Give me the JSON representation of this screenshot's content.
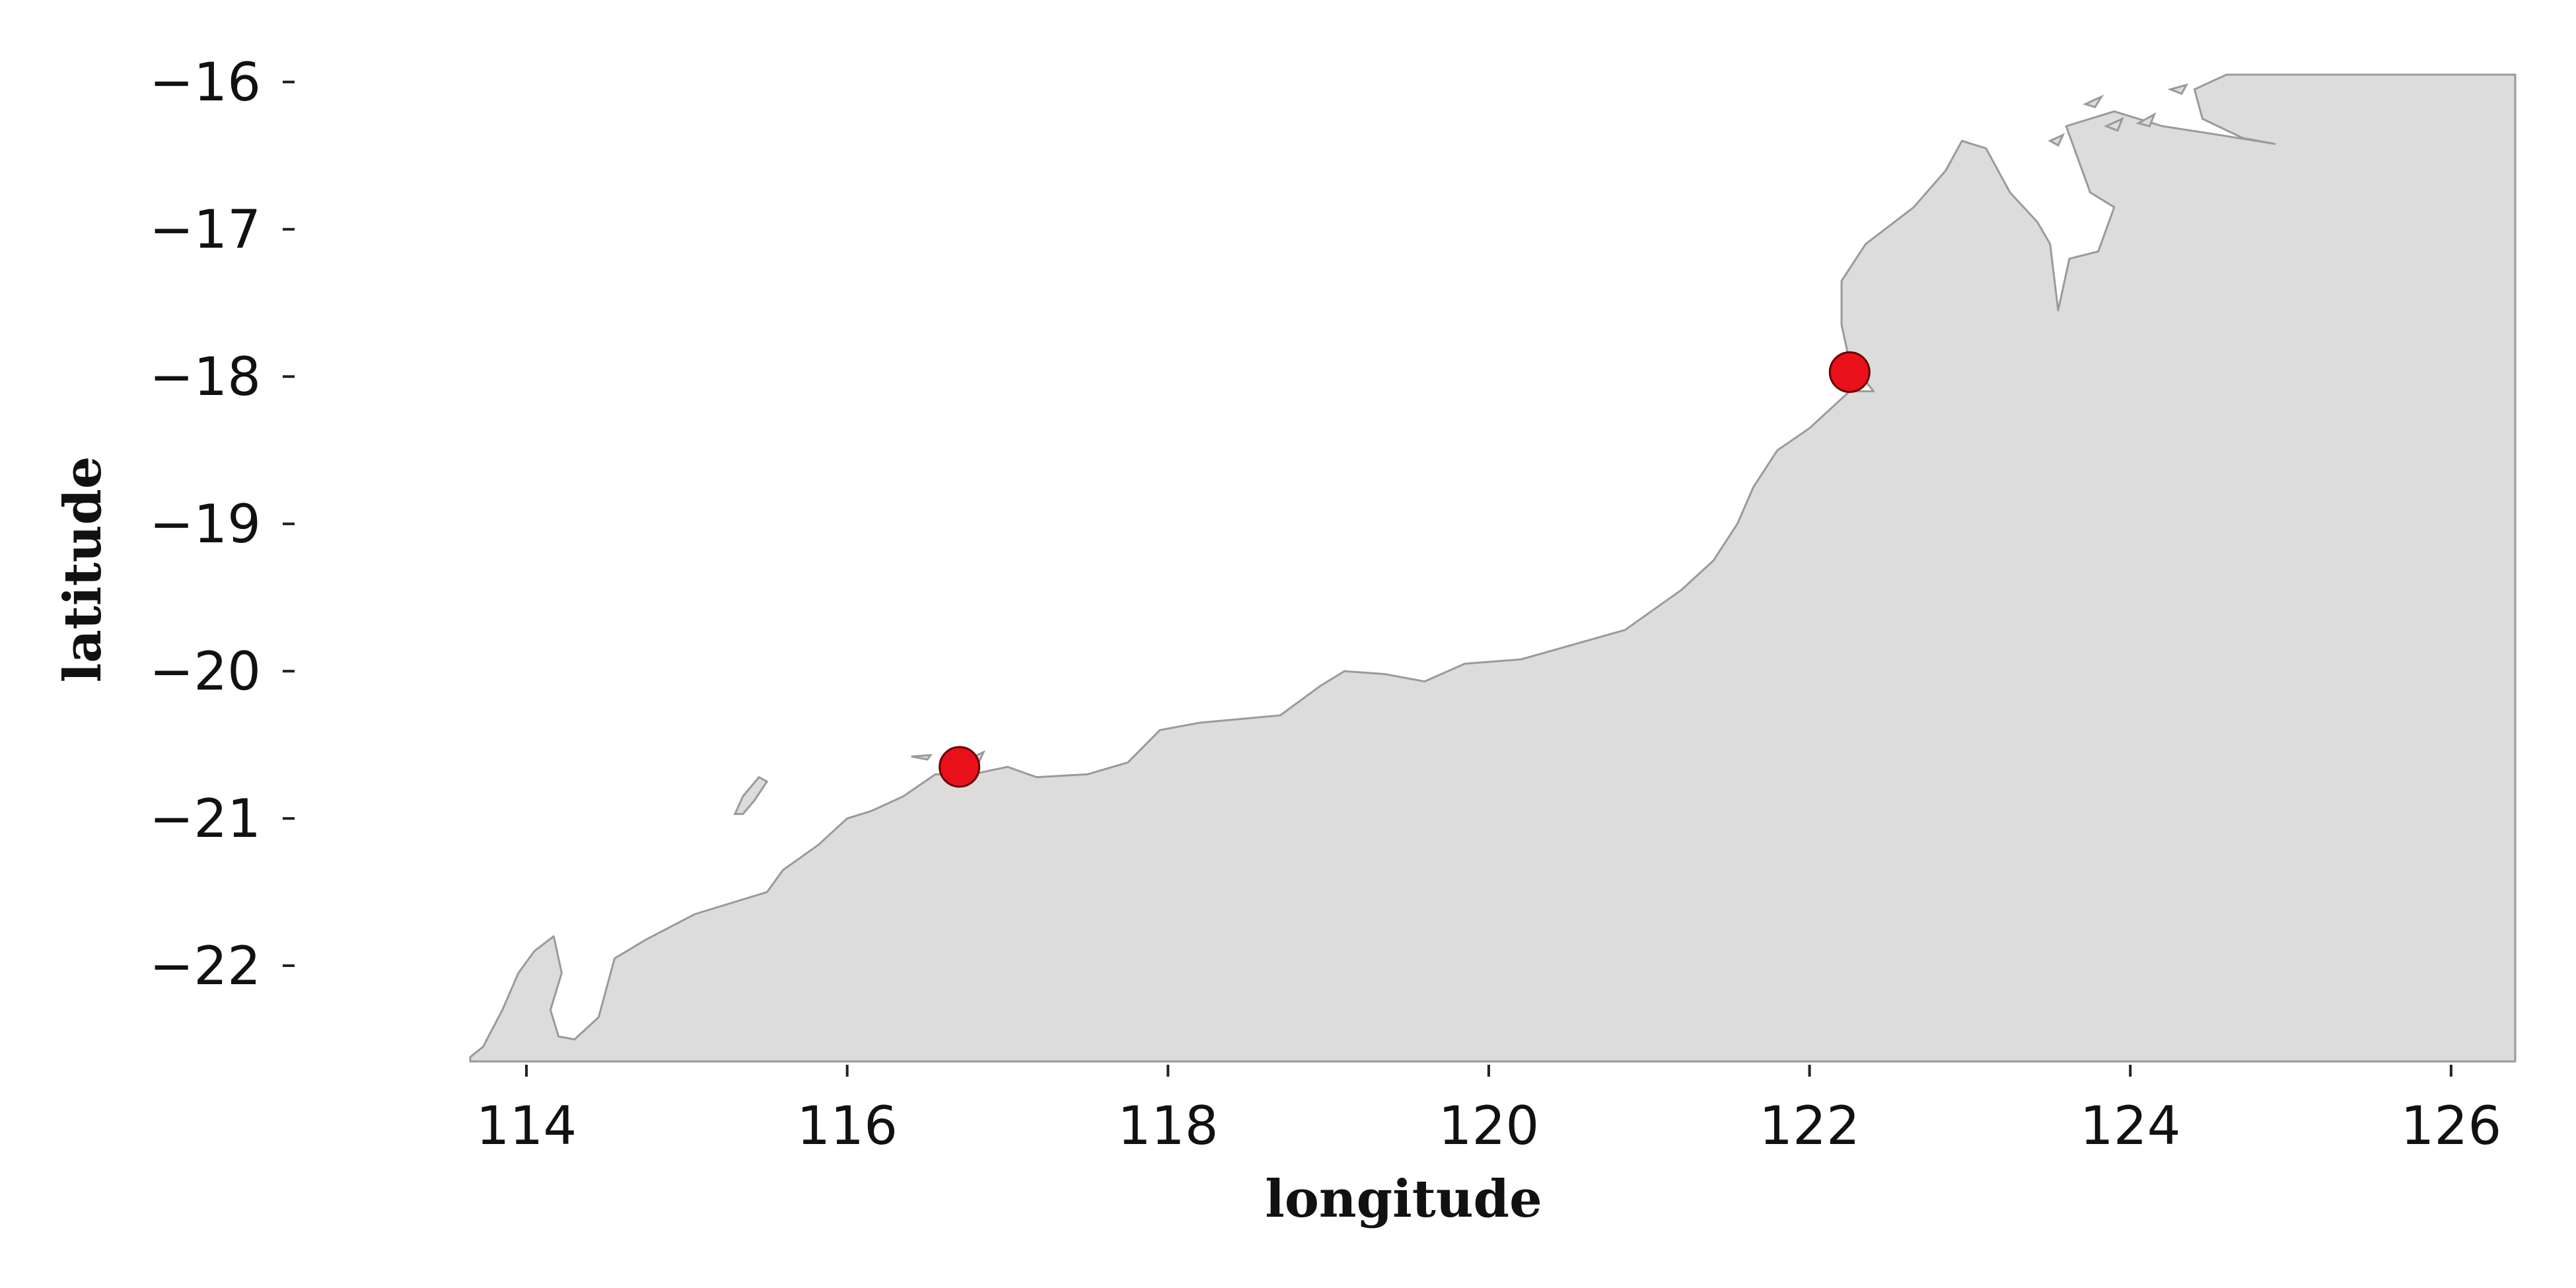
{
  "chart_data": {
    "type": "scatter",
    "xlabel": "longitude",
    "ylabel": "latitude",
    "xlim": [
      113.65,
      126.4
    ],
    "ylim": [
      -22.65,
      -15.95
    ],
    "xticks": [
      114,
      116,
      118,
      120,
      122,
      124,
      126
    ],
    "yticks": [
      -16,
      -17,
      -18,
      -19,
      -20,
      -21,
      -22
    ],
    "xtick_labels": [
      "114",
      "116",
      "118",
      "120",
      "122",
      "124",
      "126"
    ],
    "ytick_labels": [
      "−16",
      "−17",
      "−18",
      "−19",
      "−20",
      "−21",
      "−22"
    ],
    "grid": false,
    "land_color": "#dcdcdc",
    "coast_color": "#9a9a9a",
    "marker_color": "#e8111a",
    "points": [
      {
        "lon": 116.7,
        "lat": -20.65
      },
      {
        "lon": 122.25,
        "lat": -17.97
      }
    ],
    "coastline": [
      [
        113.65,
        -22.62
      ],
      [
        113.73,
        -22.55
      ],
      [
        113.85,
        -22.3
      ],
      [
        113.95,
        -22.05
      ],
      [
        114.05,
        -21.9
      ],
      [
        114.17,
        -21.8
      ],
      [
        114.22,
        -22.05
      ],
      [
        114.15,
        -22.3
      ],
      [
        114.2,
        -22.48
      ],
      [
        114.3,
        -22.5
      ],
      [
        114.45,
        -22.35
      ],
      [
        114.55,
        -21.95
      ],
      [
        114.75,
        -21.82
      ],
      [
        115.05,
        -21.65
      ],
      [
        115.5,
        -21.5
      ],
      [
        115.6,
        -21.35
      ],
      [
        115.82,
        -21.18
      ],
      [
        116.0,
        -21.0
      ],
      [
        116.15,
        -20.95
      ],
      [
        116.35,
        -20.85
      ],
      [
        116.55,
        -20.7
      ],
      [
        116.78,
        -20.7
      ],
      [
        117.0,
        -20.65
      ],
      [
        117.18,
        -20.72
      ],
      [
        117.5,
        -20.7
      ],
      [
        117.75,
        -20.62
      ],
      [
        117.95,
        -20.4
      ],
      [
        118.2,
        -20.35
      ],
      [
        118.7,
        -20.3
      ],
      [
        118.95,
        -20.1
      ],
      [
        119.1,
        -20.0
      ],
      [
        119.35,
        -20.02
      ],
      [
        119.6,
        -20.07
      ],
      [
        119.85,
        -19.95
      ],
      [
        120.2,
        -19.92
      ],
      [
        120.85,
        -19.72
      ],
      [
        121.2,
        -19.45
      ],
      [
        121.4,
        -19.25
      ],
      [
        121.55,
        -19.0
      ],
      [
        121.65,
        -18.75
      ],
      [
        121.8,
        -18.5
      ],
      [
        122.0,
        -18.35
      ],
      [
        122.25,
        -18.1
      ],
      [
        122.4,
        -18.1
      ],
      [
        122.25,
        -17.9
      ],
      [
        122.2,
        -17.65
      ],
      [
        122.2,
        -17.35
      ],
      [
        122.35,
        -17.1
      ],
      [
        122.65,
        -16.85
      ],
      [
        122.85,
        -16.6
      ],
      [
        122.95,
        -16.4
      ],
      [
        123.1,
        -16.45
      ],
      [
        123.25,
        -16.75
      ],
      [
        123.42,
        -16.95
      ],
      [
        123.5,
        -17.1
      ],
      [
        123.55,
        -17.55
      ],
      [
        123.62,
        -17.2
      ],
      [
        123.8,
        -17.15
      ],
      [
        123.9,
        -16.85
      ],
      [
        123.75,
        -16.75
      ],
      [
        123.6,
        -16.3
      ],
      [
        123.9,
        -16.2
      ],
      [
        124.2,
        -16.3
      ],
      [
        124.5,
        -16.35
      ],
      [
        124.9,
        -16.42
      ],
      [
        124.7,
        -16.38
      ],
      [
        124.45,
        -16.25
      ],
      [
        124.4,
        -16.05
      ],
      [
        124.6,
        -15.95
      ],
      [
        126.4,
        -15.95
      ],
      [
        126.4,
        -22.65
      ],
      [
        113.65,
        -22.65
      ]
    ],
    "islands": [
      [
        [
          115.3,
          -20.97
        ],
        [
          115.35,
          -20.85
        ],
        [
          115.45,
          -20.72
        ],
        [
          115.5,
          -20.75
        ],
        [
          115.42,
          -20.88
        ],
        [
          115.35,
          -20.97
        ]
      ],
      [
        [
          116.4,
          -20.58
        ],
        [
          116.52,
          -20.57
        ],
        [
          116.5,
          -20.6
        ]
      ],
      [
        [
          116.75,
          -20.6
        ],
        [
          116.85,
          -20.55
        ],
        [
          116.82,
          -20.62
        ]
      ],
      [
        [
          123.72,
          -16.15
        ],
        [
          123.82,
          -16.1
        ],
        [
          123.78,
          -16.17
        ]
      ],
      [
        [
          124.05,
          -16.28
        ],
        [
          124.15,
          -16.22
        ],
        [
          124.12,
          -16.3
        ]
      ],
      [
        [
          124.25,
          -16.05
        ],
        [
          124.35,
          -16.02
        ],
        [
          124.32,
          -16.08
        ]
      ],
      [
        [
          123.85,
          -16.3
        ],
        [
          123.95,
          -16.25
        ],
        [
          123.92,
          -16.33
        ]
      ],
      [
        [
          123.5,
          -16.4
        ],
        [
          123.58,
          -16.36
        ],
        [
          123.55,
          -16.43
        ]
      ]
    ]
  }
}
